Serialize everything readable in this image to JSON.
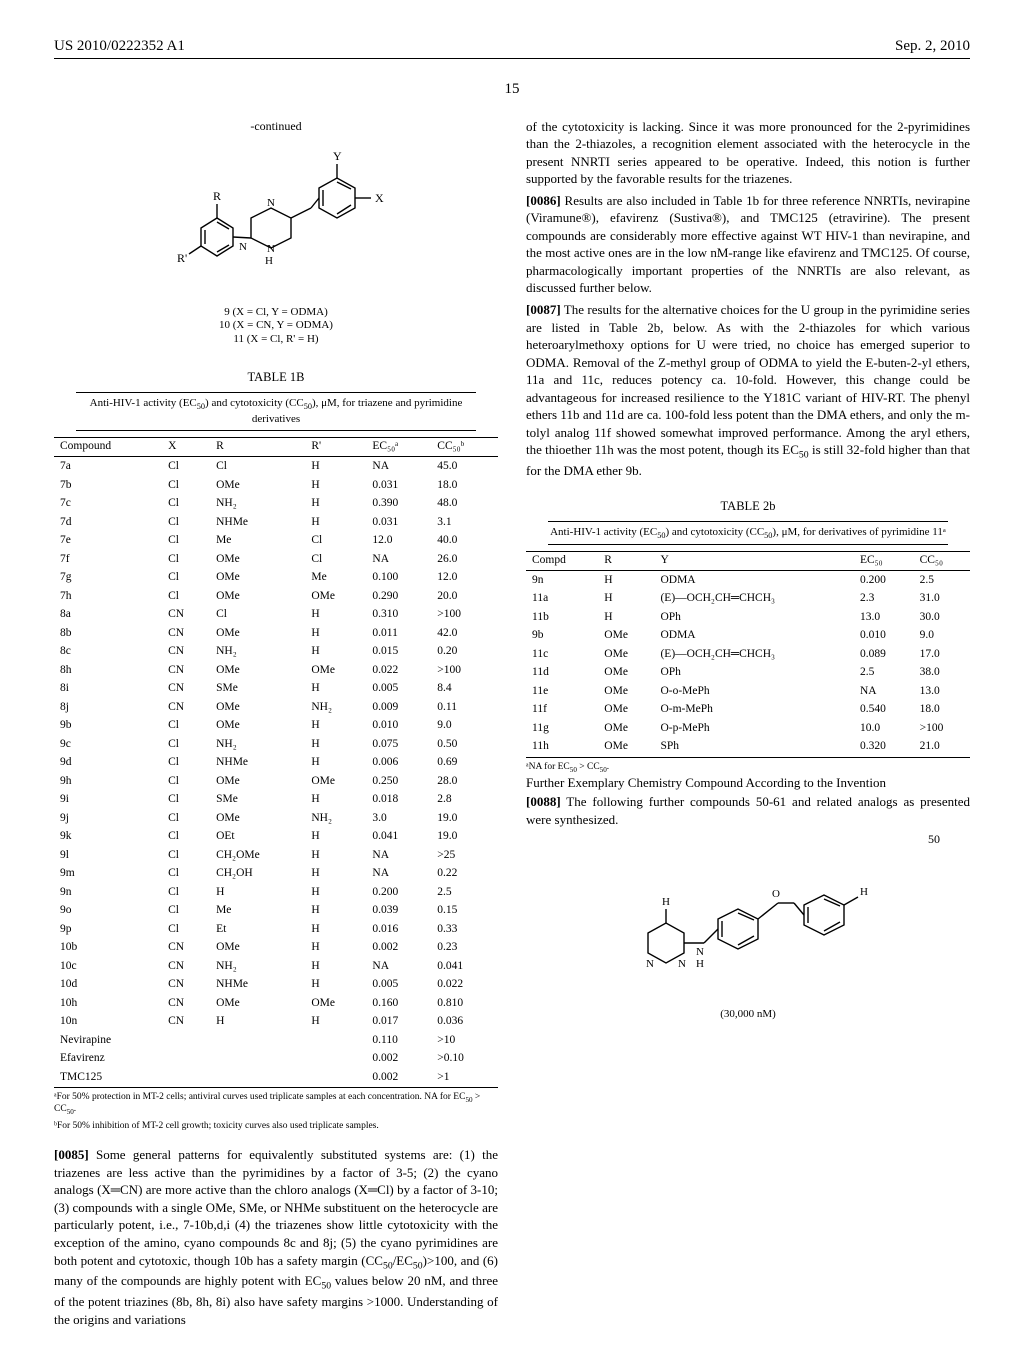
{
  "header": {
    "left": "US 2010/0222352 A1",
    "right": "Sep. 2, 2010"
  },
  "page_number": "15",
  "left_col": {
    "continued_label": "-continued",
    "structure_caption": {
      "line1": "9 (X = Cl, Y = ODMA)",
      "line2": "10 (X = CN, Y = ODMA)",
      "line3": "11 (X = Cl, R' = H)"
    },
    "table1b": {
      "title": "TABLE 1B",
      "subtitle_html": "Anti-HIV-1 activity (EC<sub>50</sub>) and cytotoxicity (CC<sub>50</sub>), μM, for triazene and pyrimidine derivatives",
      "columns": [
        "Compound",
        "X",
        "R",
        "R'",
        "EC₅₀ᵃ",
        "CC₅₀ᵇ"
      ],
      "rows": [
        [
          "7a",
          "Cl",
          "Cl",
          "H",
          "NA",
          "45.0"
        ],
        [
          "7b",
          "Cl",
          "OMe",
          "H",
          "0.031",
          "18.0"
        ],
        [
          "7c",
          "Cl",
          "NH₂",
          "H",
          "0.390",
          "48.0"
        ],
        [
          "7d",
          "Cl",
          "NHMe",
          "H",
          "0.031",
          "3.1"
        ],
        [
          "7e",
          "Cl",
          "Me",
          "Cl",
          "12.0",
          "40.0"
        ],
        [
          "7f",
          "Cl",
          "OMe",
          "Cl",
          "NA",
          "26.0"
        ],
        [
          "7g",
          "Cl",
          "OMe",
          "Me",
          "0.100",
          "12.0"
        ],
        [
          "7h",
          "Cl",
          "OMe",
          "OMe",
          "0.290",
          "20.0"
        ],
        [
          "8a",
          "CN",
          "Cl",
          "H",
          "0.310",
          ">100"
        ],
        [
          "8b",
          "CN",
          "OMe",
          "H",
          "0.011",
          "42.0"
        ],
        [
          "8c",
          "CN",
          "NH₂",
          "H",
          "0.015",
          "0.20"
        ],
        [
          "8h",
          "CN",
          "OMe",
          "OMe",
          "0.022",
          ">100"
        ],
        [
          "8i",
          "CN",
          "SMe",
          "H",
          "0.005",
          "8.4"
        ],
        [
          "8j",
          "CN",
          "OMe",
          "NH₂",
          "0.009",
          "0.11"
        ],
        [
          "9b",
          "Cl",
          "OMe",
          "H",
          "0.010",
          "9.0"
        ],
        [
          "9c",
          "Cl",
          "NH₂",
          "H",
          "0.075",
          "0.50"
        ],
        [
          "9d",
          "Cl",
          "NHMe",
          "H",
          "0.006",
          "0.69"
        ],
        [
          "9h",
          "Cl",
          "OMe",
          "OMe",
          "0.250",
          "28.0"
        ],
        [
          "9i",
          "Cl",
          "SMe",
          "H",
          "0.018",
          "2.8"
        ],
        [
          "9j",
          "Cl",
          "OMe",
          "NH₂",
          "3.0",
          "19.0"
        ],
        [
          "9k",
          "Cl",
          "OEt",
          "H",
          "0.041",
          "19.0"
        ],
        [
          "9l",
          "Cl",
          "CH₂OMe",
          "H",
          "NA",
          ">25"
        ],
        [
          "9m",
          "Cl",
          "CH₂OH",
          "H",
          "NA",
          "0.22"
        ],
        [
          "9n",
          "Cl",
          "H",
          "H",
          "0.200",
          "2.5"
        ],
        [
          "9o",
          "Cl",
          "Me",
          "H",
          "0.039",
          "0.15"
        ],
        [
          "9p",
          "Cl",
          "Et",
          "H",
          "0.016",
          "0.33"
        ],
        [
          "10b",
          "CN",
          "OMe",
          "H",
          "0.002",
          "0.23"
        ],
        [
          "10c",
          "CN",
          "NH₂",
          "H",
          "NA",
          "0.041"
        ],
        [
          "10d",
          "CN",
          "NHMe",
          "H",
          "0.005",
          "0.022"
        ],
        [
          "10h",
          "CN",
          "OMe",
          "OMe",
          "0.160",
          "0.810"
        ],
        [
          "10n",
          "CN",
          "H",
          "H",
          "0.017",
          "0.036"
        ],
        [
          "Nevirapine",
          "",
          "",
          "",
          "0.110",
          ">10"
        ],
        [
          "Efavirenz",
          "",
          "",
          "",
          "0.002",
          ">0.10"
        ],
        [
          "TMC125",
          "",
          "",
          "",
          "0.002",
          ">1"
        ]
      ],
      "footnote_a_html": "ᵃFor 50% protection in MT-2 cells; antiviral curves used triplicate samples at each concentration. NA for EC<sub>50</sub> > CC<sub>50</sub>.",
      "footnote_b_html": "ᵇFor 50% inhibition of MT-2 cell growth; toxicity curves also used triplicate samples."
    },
    "para0085_html": "<span class='paranum'>[0085]</span> Some general patterns for equivalently substituted systems are: (1) the triazenes are less active than the pyrimidines by a factor of 3-5; (2) the cyano analogs (X═CN) are more active than the chloro analogs (X═Cl) by a factor of 3-10; (3) compounds with a single OMe, SMe, or NHMe substituent on the heterocycle are particularly potent, i.e., 7-10b,d,i (4) the triazenes show little cytotoxicity with the exception of the amino, cyano compounds 8c and 8j; (5) the cyano pyrimidines are both potent and cytotoxic, though 10b has a safety margin (CC<sub>50</sub>/EC<sub>50</sub>)>100, and (6) many of the compounds are highly potent with EC<sub>50</sub> values below 20 nM, and three of the potent triazines (8b, 8h, 8i) also have safety margins >1000. Understanding of the origins and variations"
  },
  "right_col": {
    "para_cont_html": "of the cytotoxicity is lacking. Since it was more pronounced for the 2-pyrimidines than the 2-thiazoles, a recognition element associated with the heterocycle in the present NNRTI series appeared to be operative. Indeed, this notion is further supported by the favorable results for the triazenes.",
    "para0086_html": "<span class='paranum'>[0086]</span> Results are also included in Table 1b for three reference NNRTIs, nevirapine (Viramune®), efavirenz (Sustiva®), and TMC125 (etravirine). The present compounds are considerably more effective against WT HIV-1 than nevirapine, and the most active ones are in the low nM-range like efavirenz and TMC125. Of course, pharmacologically important properties of the NNRTIs are also relevant, as discussed further below.",
    "para0087_html": "<span class='paranum'>[0087]</span> The results for the alternative choices for the U group in the pyrimidine series are listed in Table 2b, below. As with the 2-thiazoles for which various heteroarylmethoxy options for U were tried, no choice has emerged superior to ODMA. Removal of the Z-methyl group of ODMA to yield the E-buten-2-yl ethers, 11a and 11c, reduces potency ca. 10-fold. However, this change could be advantageous for increased resilience to the Y181C variant of HIV-RT. The phenyl ethers 11b and 11d are ca. 100-fold less potent than the DMA ethers, and only the m-tolyl analog 11f showed somewhat improved performance. Among the aryl ethers, the thioether 11h was the most potent, though its EC<sub>50</sub> is still 32-fold higher than that for the DMA ether 9b.",
    "table2b": {
      "title": "TABLE 2b",
      "subtitle_html": "Anti-HIV-1 activity (EC<sub>50</sub>) and cytotoxicity (CC<sub>50</sub>), μM, for derivatives of pyrimidine 11ᵃ",
      "columns": [
        "Compd",
        "R",
        "Y",
        "EC₅₀",
        "CC₅₀"
      ],
      "rows": [
        [
          "9n",
          "H",
          "ODMA",
          "0.200",
          "2.5"
        ],
        [
          "11a",
          "H",
          "(E)—OCH₂CH═CHCH₃",
          "2.3",
          "31.0"
        ],
        [
          "11b",
          "H",
          "OPh",
          "13.0",
          "30.0"
        ],
        [
          "9b",
          "OMe",
          "ODMA",
          "0.010",
          "9.0"
        ],
        [
          "11c",
          "OMe",
          "(E)—OCH₂CH═CHCH₃",
          "0.089",
          "17.0"
        ],
        [
          "11d",
          "OMe",
          "OPh",
          "2.5",
          "38.0"
        ],
        [
          "11e",
          "OMe",
          "O-o-MePh",
          "NA",
          "13.0"
        ],
        [
          "11f",
          "OMe",
          "O-m-MePh",
          "0.540",
          "18.0"
        ],
        [
          "11g",
          "OMe",
          "O-p-MePh",
          "10.0",
          ">100"
        ],
        [
          "11h",
          "OMe",
          "SPh",
          "0.320",
          "21.0"
        ]
      ],
      "footnote_html": "ᵃNA for EC<sub>50</sub> > CC<sub>50</sub>."
    },
    "section_heading": "Further Exemplary Chemistry Compound According to the Invention",
    "para0088_html": "<span class='paranum'>[0088]</span> The following further compounds 50-61 and related analogs as presented were synthesized.",
    "compound50": {
      "label": "50",
      "caption": "(30,000 nM)"
    }
  },
  "style": {
    "font_body_pt": 13,
    "font_table_pt": 11.5,
    "font_footnote_pt": 9.5,
    "rule_color": "#000000",
    "background": "#ffffff"
  }
}
